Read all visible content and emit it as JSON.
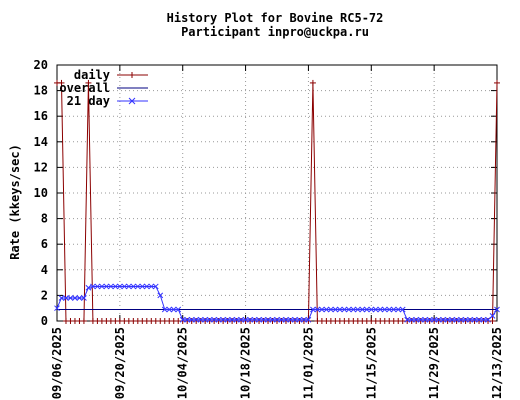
{
  "chart_data": {
    "type": "line",
    "title": "History Plot for Bovine RC5-72",
    "subtitle": "Participant inpro@uckpa.ru",
    "ylabel": "Rate (kkeys/sec)",
    "xlabel": "",
    "ylim": [
      0,
      20
    ],
    "yticks": [
      0,
      2,
      4,
      6,
      8,
      10,
      12,
      14,
      16,
      18,
      20
    ],
    "xlim": [
      "2025-09-06",
      "2025-12-13"
    ],
    "xticks": [
      "09/06/2025",
      "09/20/2025",
      "10/04/2025",
      "10/18/2025",
      "11/01/2025",
      "11/15/2025",
      "11/29/2025",
      "12/13/2025"
    ],
    "grid": true,
    "legend_position": "top-left",
    "series": [
      {
        "name": "daily",
        "color": "#8b0000",
        "marker": "+",
        "x": [
          "2025-09-06",
          "2025-09-07",
          "2025-09-08",
          "2025-09-09",
          "2025-09-10",
          "2025-09-11",
          "2025-09-12",
          "2025-09-13",
          "2025-09-14",
          "2025-09-15",
          "2025-09-16",
          "2025-11-01",
          "2025-11-02",
          "2025-11-03",
          "2025-12-11",
          "2025-12-12",
          "2025-12-13"
        ],
        "y": [
          18.6,
          18.6,
          0,
          0,
          0,
          0,
          0,
          18.6,
          0,
          0,
          0,
          0,
          18.6,
          0,
          0,
          0,
          18.6
        ]
      },
      {
        "name": "overall",
        "color": "#000080",
        "marker": "",
        "x": [
          "2025-09-06",
          "2025-12-13"
        ],
        "y": [
          0.9,
          0.9
        ]
      },
      {
        "name": "21 day",
        "color": "#3333ff",
        "marker": "x",
        "x": [
          "2025-09-06",
          "2025-09-07",
          "2025-09-08",
          "2025-09-12",
          "2025-09-13",
          "2025-09-14",
          "2025-09-28",
          "2025-09-29",
          "2025-09-30",
          "2025-10-03",
          "2025-10-04",
          "2025-11-01",
          "2025-11-02",
          "2025-11-03",
          "2025-11-22",
          "2025-11-23",
          "2025-12-11",
          "2025-12-12",
          "2025-12-13"
        ],
        "y": [
          1.0,
          1.8,
          1.8,
          1.8,
          2.6,
          2.7,
          2.7,
          2.0,
          0.9,
          0.9,
          0.1,
          0.1,
          0.9,
          0.9,
          0.9,
          0.1,
          0.1,
          0.4,
          0.9
        ]
      }
    ]
  }
}
